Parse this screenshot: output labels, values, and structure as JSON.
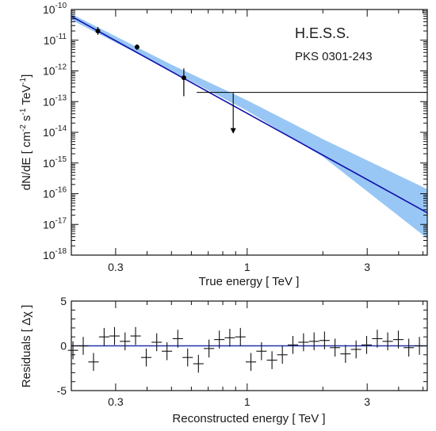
{
  "chart_data": [
    {
      "type": "scatter",
      "title": "",
      "annotations": [
        "H.E.S.S.",
        "PKS 0301-243"
      ],
      "xlabel": "True energy  [ TeV ]",
      "ylabel": "dN/dE  [ cm",
      "ylabel_parts": [
        "dN/dE  [ cm",
        "-2",
        " s",
        "-1",
        " TeV",
        "-1",
        "]"
      ],
      "xscale": "log",
      "yscale": "log",
      "xlim": [
        0.2,
        5.2
      ],
      "ylim": [
        1e-18,
        1e-10
      ],
      "xticks": [
        {
          "value": 0.3,
          "label": "0.3"
        },
        {
          "value": 1,
          "label": "1"
        },
        {
          "value": 3,
          "label": "3"
        }
      ],
      "yticks": [
        {
          "exp": -10,
          "label": "10",
          "sup": "-10"
        },
        {
          "exp": -11,
          "label": "10",
          "sup": "-11"
        },
        {
          "exp": -12,
          "label": "10",
          "sup": "-12"
        },
        {
          "exp": -13,
          "label": "10",
          "sup": "-13"
        },
        {
          "exp": -14,
          "label": "10",
          "sup": "-14"
        },
        {
          "exp": -15,
          "label": "10",
          "sup": "-15"
        },
        {
          "exp": -16,
          "label": "10",
          "sup": "-16"
        },
        {
          "exp": -17,
          "label": "10",
          "sup": "-17"
        },
        {
          "exp": -18,
          "label": "10",
          "sup": "-18"
        }
      ],
      "points": [
        {
          "x": 0.255,
          "y": 2e-11,
          "ylow": 1.5e-11,
          "yhigh": 2.7e-11
        },
        {
          "x": 0.365,
          "y": 6e-12,
          "ylow": 4.8e-12,
          "yhigh": 7.3e-12
        },
        {
          "x": 0.56,
          "y": 6e-13,
          "ylow": 1.5e-13,
          "yhigh": 1.2e-12
        }
      ],
      "upper_limits": [
        {
          "x": 0.88,
          "y": 2e-13,
          "x_min": 0.63,
          "x_max": 5.2,
          "arrow_to": 9e-15
        }
      ],
      "fit": {
        "type": "power-law",
        "color": "#1111aa",
        "band_color": "#99c7f5",
        "line": [
          [
            0.2,
            6e-11
          ],
          [
            5.2,
            2.4e-17
          ]
        ],
        "band_upper": [
          [
            0.2,
            7.2e-11
          ],
          [
            0.5,
            1.6e-12
          ],
          [
            1.0,
            1.1e-13
          ],
          [
            2.0,
            6e-15
          ],
          [
            5.2,
            1.4e-16
          ]
        ],
        "band_lower": [
          [
            0.2,
            4.6e-11
          ],
          [
            0.5,
            1e-12
          ],
          [
            1.0,
            5e-14
          ],
          [
            2.0,
            1.6e-15
          ],
          [
            5.2,
            3.5e-18
          ]
        ]
      },
      "grid": false
    },
    {
      "type": "scatter",
      "title": "",
      "xlabel": "Reconstructed energy  [ TeV ]",
      "ylabel": "Residuals  [ Δχ ]",
      "xscale": "log",
      "xlim": [
        0.2,
        5.2
      ],
      "ylim": [
        -5,
        5
      ],
      "xticks": [
        {
          "value": 0.3,
          "label": "0.3"
        },
        {
          "value": 1,
          "label": "1"
        },
        {
          "value": 3,
          "label": "3"
        }
      ],
      "yticks": [
        {
          "value": 5,
          "label": "5"
        },
        {
          "value": 0,
          "label": "0"
        },
        {
          "value": -5,
          "label": "-5"
        }
      ],
      "zero_line_color": "#2233aa",
      "residuals": [
        {
          "x": 0.203,
          "y": -0.5
        },
        {
          "x": 0.223,
          "y": 0.0
        },
        {
          "x": 0.245,
          "y": -1.8
        },
        {
          "x": 0.27,
          "y": 1.0
        },
        {
          "x": 0.297,
          "y": 1.1
        },
        {
          "x": 0.327,
          "y": 0.5
        },
        {
          "x": 0.36,
          "y": 1.1
        },
        {
          "x": 0.397,
          "y": -1.3
        },
        {
          "x": 0.437,
          "y": 0.4
        },
        {
          "x": 0.48,
          "y": -0.6
        },
        {
          "x": 0.53,
          "y": 0.8
        },
        {
          "x": 0.58,
          "y": -1.3
        },
        {
          "x": 0.64,
          "y": -2.0
        },
        {
          "x": 0.705,
          "y": -0.3
        },
        {
          "x": 0.775,
          "y": 0.7
        },
        {
          "x": 0.853,
          "y": 0.9
        },
        {
          "x": 0.94,
          "y": 1.0
        },
        {
          "x": 1.035,
          "y": -1.8
        },
        {
          "x": 1.14,
          "y": -0.6
        },
        {
          "x": 1.255,
          "y": -1.6
        },
        {
          "x": 1.38,
          "y": -1.0
        },
        {
          "x": 1.52,
          "y": 0.1
        },
        {
          "x": 1.675,
          "y": 0.4
        },
        {
          "x": 1.845,
          "y": 0.5
        },
        {
          "x": 2.03,
          "y": 0.6
        },
        {
          "x": 2.235,
          "y": -0.2
        },
        {
          "x": 2.46,
          "y": -0.9
        },
        {
          "x": 2.71,
          "y": -0.4
        },
        {
          "x": 2.985,
          "y": 0.1
        },
        {
          "x": 3.29,
          "y": 0.8
        },
        {
          "x": 3.62,
          "y": 0.5
        },
        {
          "x": 3.99,
          "y": 0.7
        },
        {
          "x": 4.39,
          "y": -0.2
        },
        {
          "x": 4.84,
          "y": 0.0
        }
      ],
      "grid": false
    }
  ]
}
